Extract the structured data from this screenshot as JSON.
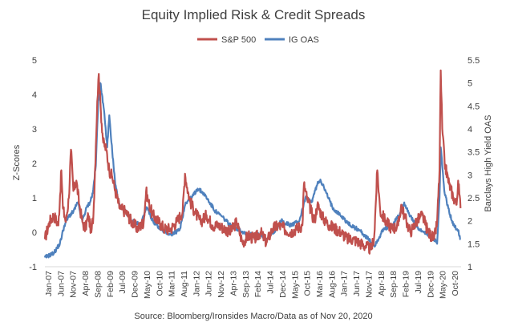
{
  "chart_data": {
    "type": "line",
    "title": "Equity Implied Risk & Credit Spreads",
    "ylabel": "Z-Scores",
    "y2label": "Barclays High Yield OAS",
    "ylim": [
      -1,
      5
    ],
    "y2lim": [
      1,
      5.5
    ],
    "yticks": [
      "5",
      "4",
      "3",
      "2",
      "1",
      "0",
      "-1"
    ],
    "y2ticks": [
      "5.5",
      "5",
      "4.5",
      "4",
      "3.5",
      "3",
      "2.5",
      "2",
      "1.5",
      "1"
    ],
    "xlabels": [
      "Jan-07",
      "Jun-07",
      "Nov-07",
      "Apr-08",
      "Sep-08",
      "Feb-09",
      "Jul-09",
      "Dec-09",
      "May-10",
      "Oct-10",
      "Mar-11",
      "Aug-11",
      "Jan-12",
      "Jun-12",
      "Nov-12",
      "Apr-13",
      "Sep-13",
      "Feb-14",
      "Jul-14",
      "Dec-14",
      "May-15",
      "Oct-15",
      "Mar-16",
      "Aug-16",
      "Jan-17",
      "Jun-17",
      "Nov-17",
      "Apr-18",
      "Sep-18",
      "Feb-19",
      "Jul-19",
      "Dec-19",
      "May-20",
      "Oct-20"
    ],
    "source": "Source: Bloomberg/Ironsides Macro/Data as of Nov 20, 2020",
    "series": [
      {
        "name": "S&P 500",
        "axis": "left",
        "color": "#c0504d",
        "x": [
          2007.0,
          2007.15,
          2007.3,
          2007.45,
          2007.55,
          2007.6,
          2007.7,
          2007.8,
          2007.87,
          2007.95,
          2008.05,
          2008.15,
          2008.25,
          2008.35,
          2008.45,
          2008.55,
          2008.62,
          2008.7,
          2008.75,
          2008.8,
          2008.87,
          2008.95,
          2009.05,
          2009.15,
          2009.25,
          2009.35,
          2009.5,
          2009.7,
          2009.9,
          2010.1,
          2010.3,
          2010.38,
          2010.45,
          2010.6,
          2010.8,
          2011.0,
          2011.2,
          2011.4,
          2011.6,
          2011.68,
          2011.75,
          2011.85,
          2012.0,
          2012.2,
          2012.4,
          2012.6,
          2012.8,
          2013.0,
          2013.2,
          2013.4,
          2013.6,
          2013.8,
          2014.0,
          2014.2,
          2014.4,
          2014.6,
          2014.8,
          2015.0,
          2015.2,
          2015.4,
          2015.6,
          2015.65,
          2015.75,
          2015.9,
          2016.0,
          2016.1,
          2016.3,
          2016.5,
          2016.7,
          2016.9,
          2017.1,
          2017.3,
          2017.5,
          2017.7,
          2017.9,
          2018.0,
          2018.1,
          2018.2,
          2018.4,
          2018.6,
          2018.8,
          2018.9,
          2019.0,
          2019.2,
          2019.4,
          2019.6,
          2019.8,
          2020.0,
          2020.1,
          2020.18,
          2020.22,
          2020.27,
          2020.35,
          2020.5,
          2020.65,
          2020.75,
          2020.8,
          2020.88
        ],
        "values": [
          -0.2,
          0.3,
          0.5,
          0.2,
          1.8,
          0.7,
          0.3,
          1.0,
          2.4,
          1.2,
          1.5,
          0.8,
          0.3,
          0.1,
          0.5,
          0.0,
          0.5,
          2.5,
          3.8,
          4.6,
          3.5,
          2.6,
          2.4,
          1.8,
          1.6,
          1.2,
          0.7,
          0.6,
          0.3,
          0.1,
          0.3,
          1.2,
          0.9,
          0.5,
          0.3,
          0.1,
          0.1,
          0.3,
          0.6,
          1.7,
          1.3,
          0.9,
          0.6,
          0.3,
          0.5,
          0.2,
          0.2,
          0.1,
          0.0,
          0.3,
          -0.3,
          -0.1,
          -0.2,
          0.0,
          -0.3,
          0.1,
          0.2,
          0.1,
          0.0,
          0.1,
          0.2,
          1.4,
          1.0,
          0.6,
          0.3,
          0.8,
          0.4,
          0.2,
          0.1,
          0.0,
          -0.2,
          -0.2,
          -0.3,
          -0.4,
          -0.5,
          -0.1,
          1.8,
          0.6,
          0.3,
          0.1,
          0.2,
          0.8,
          0.5,
          0.0,
          0.3,
          0.5,
          0.0,
          -0.2,
          0.3,
          1.8,
          4.7,
          3.0,
          2.0,
          1.4,
          1.0,
          0.8,
          1.5,
          0.7
        ]
      },
      {
        "name": "IG OAS",
        "axis": "right",
        "color": "#4f81bd",
        "x": [
          2007.0,
          2007.15,
          2007.3,
          2007.5,
          2007.65,
          2007.8,
          2007.95,
          2008.1,
          2008.25,
          2008.4,
          2008.5,
          2008.6,
          2008.7,
          2008.78,
          2008.85,
          2008.92,
          2009.0,
          2009.08,
          2009.15,
          2009.25,
          2009.35,
          2009.5,
          2009.7,
          2009.9,
          2010.2,
          2010.4,
          2010.6,
          2010.9,
          2011.2,
          2011.5,
          2011.7,
          2011.9,
          2012.1,
          2012.3,
          2012.5,
          2012.7,
          2012.9,
          2013.2,
          2013.5,
          2013.8,
          2014.1,
          2014.4,
          2014.7,
          2014.9,
          2015.2,
          2015.5,
          2015.7,
          2015.9,
          2016.1,
          2016.2,
          2016.4,
          2016.6,
          2016.9,
          2017.2,
          2017.5,
          2017.8,
          2018.0,
          2018.3,
          2018.6,
          2018.9,
          2019.0,
          2019.2,
          2019.5,
          2019.8,
          2020.0,
          2020.1,
          2020.18,
          2020.22,
          2020.27,
          2020.35,
          2020.5,
          2020.65,
          2020.8,
          2020.88
        ],
        "values": [
          1.2,
          1.25,
          1.3,
          1.5,
          1.9,
          2.1,
          2.2,
          2.4,
          2.0,
          2.3,
          2.4,
          2.6,
          3.2,
          4.6,
          5.0,
          4.7,
          4.2,
          3.6,
          4.3,
          3.5,
          2.8,
          2.3,
          2.2,
          2.0,
          1.9,
          2.3,
          2.0,
          1.8,
          1.7,
          1.8,
          2.4,
          2.5,
          2.7,
          2.6,
          2.4,
          2.2,
          2.1,
          1.9,
          1.8,
          1.7,
          1.7,
          1.6,
          1.8,
          2.0,
          1.9,
          2.0,
          2.5,
          2.4,
          2.8,
          2.9,
          2.6,
          2.3,
          2.1,
          1.9,
          1.8,
          1.6,
          1.45,
          1.8,
          1.9,
          2.2,
          2.4,
          2.1,
          1.8,
          1.7,
          1.6,
          1.5,
          2.5,
          3.6,
          3.2,
          2.6,
          2.2,
          1.9,
          1.8,
          1.6
        ]
      }
    ]
  }
}
